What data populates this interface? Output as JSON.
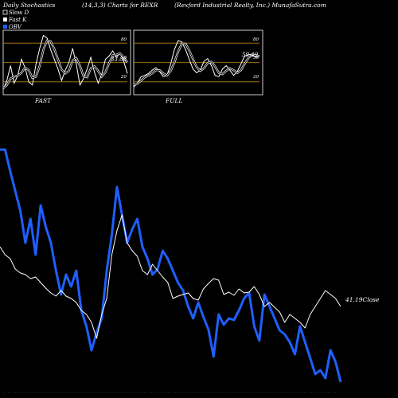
{
  "header": {
    "left": "Daily Stochastics",
    "center": "(14,3,3) Charts for REXR",
    "right": "(Rexford Industrial Realty, Inc.) MunafaSutra.com"
  },
  "legend": [
    {
      "label": "Slow  D",
      "color": "#000000"
    },
    {
      "label": "Fast K",
      "color": "#ffffff"
    },
    {
      "label": "OBV",
      "color": "#1f5fff"
    }
  ],
  "panels": {
    "fast": {
      "label": "FAST",
      "last_value": "33.08",
      "tick_80": "80",
      "tick_50": "50",
      "tick_20": "20"
    },
    "full": {
      "label": "FULL",
      "last_value": "59.49",
      "tick_80": "80",
      "tick_50": "50",
      "tick_20": "20"
    }
  },
  "main": {
    "close_label": "41.19Close"
  },
  "colors": {
    "obv": "#1f5fff",
    "close": "#ffffff",
    "level_lines": "#b8860b",
    "background": "#000000"
  },
  "chart_data": [
    {
      "type": "line",
      "name": "FAST",
      "ylim": [
        0,
        100
      ],
      "hlines": [
        80,
        50,
        20
      ],
      "series": [
        {
          "name": "Fast K",
          "values": [
            8,
            22,
            45,
            18,
            30,
            55,
            42,
            20,
            15,
            48,
            72,
            92,
            88,
            70,
            55,
            40,
            22,
            38,
            50,
            72,
            48,
            15,
            25,
            40,
            58,
            35,
            18,
            32,
            55,
            60,
            68,
            58,
            65,
            52,
            33
          ]
        },
        {
          "name": "Slow D",
          "values": [
            10,
            15,
            25,
            28,
            30,
            34,
            42,
            38,
            26,
            28,
            45,
            70,
            84,
            83,
            71,
            55,
            39,
            33,
            37,
            53,
            57,
            45,
            29,
            27,
            41,
            44,
            37,
            28,
            35,
            49,
            61,
            62,
            64,
            58,
            50
          ]
        }
      ]
    },
    {
      "type": "line",
      "name": "FULL",
      "ylim": [
        0,
        100
      ],
      "hlines": [
        80,
        50,
        20
      ],
      "series": [
        {
          "name": "Fast K",
          "values": [
            12,
            18,
            28,
            30,
            33,
            38,
            42,
            36,
            28,
            30,
            48,
            70,
            84,
            82,
            70,
            55,
            40,
            34,
            38,
            52,
            56,
            45,
            30,
            28,
            40,
            45,
            38,
            30,
            36,
            48,
            60,
            62,
            63,
            58,
            59
          ]
        },
        {
          "name": "Slow D",
          "values": [
            15,
            17,
            22,
            27,
            30,
            33,
            38,
            38,
            33,
            30,
            37,
            50,
            67,
            79,
            79,
            69,
            55,
            43,
            37,
            41,
            49,
            51,
            44,
            34,
            32,
            37,
            41,
            38,
            34,
            38,
            48,
            57,
            62,
            61,
            60
          ]
        }
      ]
    },
    {
      "type": "line",
      "name": "Price / OBV",
      "series": [
        {
          "name": "OBV",
          "values": [
            188,
            188,
            215,
            240,
            265,
            305,
            275,
            320,
            258,
            285,
            305,
            340,
            370,
            345,
            360,
            340,
            390,
            410,
            440,
            418,
            400,
            340,
            295,
            235,
            270,
            305,
            288,
            275,
            310,
            325,
            345,
            338,
            315,
            325,
            340,
            355,
            365,
            385,
            400,
            380,
            398,
            414,
            448,
            395,
            408,
            400,
            402,
            390,
            375,
            368,
            410,
            428,
            370,
            385,
            400,
            415,
            420,
            430,
            445,
            410,
            430,
            450,
            470,
            465,
            475,
            440,
            455,
            480
          ]
        },
        {
          "name": "Close",
          "values": [
            310,
            320,
            325,
            338,
            343,
            345,
            350,
            348,
            355,
            362,
            368,
            372,
            365,
            372,
            375,
            380,
            390,
            395,
            405,
            425,
            395,
            375,
            320,
            290,
            270,
            305,
            315,
            322,
            340,
            345,
            332,
            340,
            348,
            355,
            375,
            372,
            370,
            368,
            375,
            377,
            363,
            356,
            350,
            352,
            370,
            367,
            371,
            363,
            368,
            367,
            360,
            370,
            385,
            380,
            386,
            392,
            405,
            395,
            400,
            405,
            412,
            395,
            385,
            375,
            365,
            370,
            375,
            385
          ]
        }
      ]
    }
  ]
}
